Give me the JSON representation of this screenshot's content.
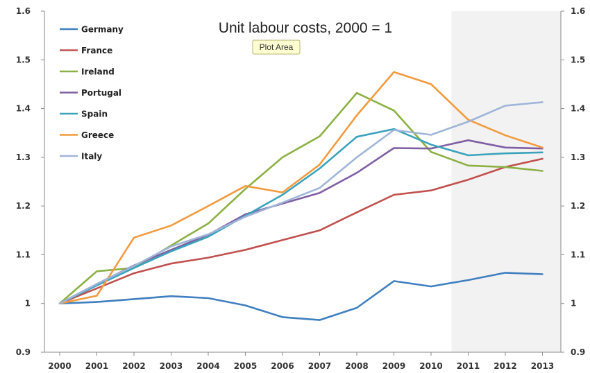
{
  "tooltip": "Plot Area",
  "chart_data": {
    "type": "line",
    "title": "Unit labour costs, 2000 = 1",
    "xlabel": "",
    "ylabel": "",
    "ylim": [
      0.9,
      1.6
    ],
    "yticks": [
      "0.9",
      "1",
      "1.1",
      "1.2",
      "1.3",
      "1.4",
      "1.5",
      "1.6"
    ],
    "grid": false,
    "dual_y_axis": true,
    "legend_position": "top-left",
    "forecast_shading": {
      "from": "2010",
      "to": "2013",
      "color": "#f2f2f2"
    },
    "x": [
      "2000",
      "2001",
      "2002",
      "2003",
      "2004",
      "2005",
      "2006",
      "2007",
      "2008",
      "2009",
      "2010",
      "2011",
      "2012",
      "2013"
    ],
    "series": [
      {
        "name": "Germany",
        "color": "#3f7fbf",
        "values": [
          1.0,
          1.003,
          1.009,
          1.015,
          1.011,
          0.996,
          0.972,
          0.966,
          0.991,
          1.046,
          1.035,
          1.048,
          1.063,
          1.06
        ]
      },
      {
        "name": "France",
        "color": "#c0504d",
        "values": [
          1.0,
          1.031,
          1.062,
          1.082,
          1.094,
          1.11,
          1.13,
          1.15,
          1.187,
          1.223,
          1.232,
          1.254,
          1.28,
          1.297
        ]
      },
      {
        "name": "Ireland",
        "color": "#8cb044",
        "values": [
          1.0,
          1.066,
          1.073,
          1.119,
          1.164,
          1.235,
          1.3,
          1.343,
          1.432,
          1.396,
          1.311,
          1.283,
          1.28,
          1.272
        ]
      },
      {
        "name": "Portugal",
        "color": "#7f5fa3",
        "values": [
          1.0,
          1.04,
          1.078,
          1.11,
          1.141,
          1.183,
          1.205,
          1.227,
          1.268,
          1.319,
          1.318,
          1.335,
          1.32,
          1.318
        ]
      },
      {
        "name": "Spain",
        "color": "#3aa3bb",
        "values": [
          1.0,
          1.037,
          1.073,
          1.107,
          1.137,
          1.18,
          1.223,
          1.277,
          1.342,
          1.358,
          1.326,
          1.304,
          1.308,
          1.31
        ]
      },
      {
        "name": "Greece",
        "color": "#f29a3e",
        "values": [
          1.0,
          1.016,
          1.135,
          1.16,
          1.2,
          1.241,
          1.228,
          1.285,
          1.386,
          1.475,
          1.45,
          1.377,
          1.345,
          1.32
        ]
      },
      {
        "name": "Italy",
        "color": "#9fb5d8",
        "values": [
          1.0,
          1.04,
          1.077,
          1.117,
          1.142,
          1.178,
          1.207,
          1.237,
          1.3,
          1.356,
          1.346,
          1.373,
          1.406,
          1.413
        ]
      }
    ]
  }
}
